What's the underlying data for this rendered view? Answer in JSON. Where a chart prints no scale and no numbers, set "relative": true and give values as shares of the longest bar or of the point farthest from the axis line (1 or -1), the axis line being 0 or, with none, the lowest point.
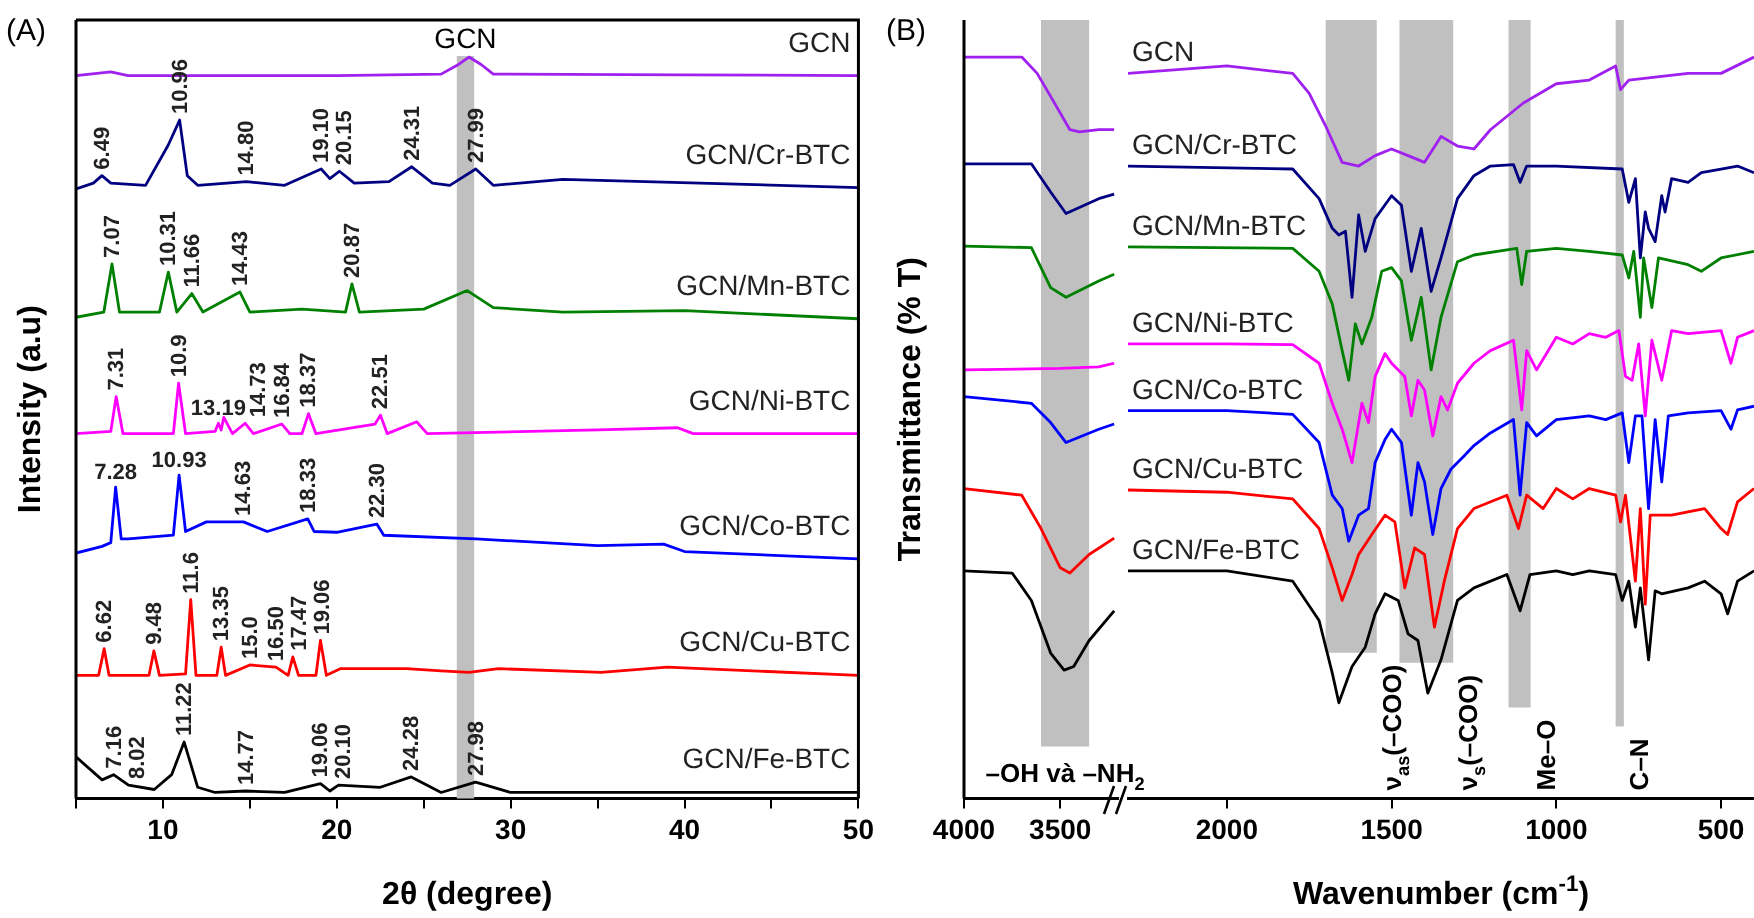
{
  "chart_data": [
    {
      "type": "line",
      "relative": true,
      "title": "(A)",
      "xlabel": "2θ (degree)",
      "ylabel": "Intensity (a.u)",
      "tick_labels": "x",
      "xlim": [
        5,
        50
      ],
      "xticks": [
        {
          "value": 5,
          "label": null
        },
        10,
        {
          "value": 15,
          "label": null
        },
        20,
        {
          "value": 25,
          "label": null
        },
        30,
        {
          "value": 35,
          "label": null
        },
        40,
        {
          "value": 45,
          "label": null
        },
        50
      ],
      "bands": [
        {
          "axis": "x",
          "from": 26.9,
          "to": 27.9,
          "label": "GCN",
          "color": "#c0c0c0"
        }
      ],
      "series": [
        {
          "name": "GCN",
          "color": "#a020f0",
          "x": [
            5,
            7,
            8,
            20,
            26,
            27,
            27.6,
            28.3,
            29,
            40,
            50
          ],
          "values": [
            0.975,
            0.98,
            0.975,
            0.975,
            0.977,
            0.99,
            1.0,
            0.99,
            0.977,
            0.976,
            0.975
          ]
        },
        {
          "name": "GCN/Cr-BTC",
          "color": "#000080",
          "x": [
            5,
            6,
            6.49,
            7,
            9,
            10.3,
            10.96,
            11.4,
            12,
            14.8,
            17,
            19.1,
            19.6,
            20.15,
            21,
            23,
            24.31,
            25.5,
            26.5,
            27.99,
            29,
            33,
            50
          ],
          "values": [
            0.822,
            0.83,
            0.84,
            0.83,
            0.827,
            0.881,
            0.915,
            0.84,
            0.827,
            0.832,
            0.827,
            0.849,
            0.836,
            0.846,
            0.83,
            0.832,
            0.852,
            0.83,
            0.827,
            0.849,
            0.827,
            0.835,
            0.824
          ]
        },
        {
          "name": "GCN/Mn-BTC",
          "color": "#008000",
          "x": [
            5,
            6.6,
            7.07,
            7.5,
            9.8,
            10.31,
            10.8,
            11.66,
            12.3,
            14.43,
            15,
            18,
            20.5,
            20.87,
            21.3,
            25,
            27.5,
            29,
            33,
            40,
            50
          ],
          "values": [
            0.649,
            0.656,
            0.721,
            0.656,
            0.656,
            0.71,
            0.656,
            0.681,
            0.656,
            0.683,
            0.656,
            0.66,
            0.656,
            0.694,
            0.656,
            0.66,
            0.685,
            0.662,
            0.656,
            0.658,
            0.647
          ]
        },
        {
          "name": "GCN/Ni-BTC",
          "color": "#ff00ff",
          "x": [
            5,
            7.0,
            7.31,
            7.7,
            10.6,
            10.9,
            11.3,
            13.0,
            13.19,
            13.35,
            13.5,
            14.0,
            14.73,
            15.2,
            16.84,
            17.3,
            18.0,
            18.37,
            18.8,
            22.2,
            22.51,
            22.9,
            24.6,
            25.2,
            35,
            39.6,
            40.5,
            50
          ],
          "values": [
            0.492,
            0.495,
            0.542,
            0.492,
            0.492,
            0.56,
            0.492,
            0.495,
            0.506,
            0.497,
            0.514,
            0.492,
            0.506,
            0.492,
            0.505,
            0.492,
            0.492,
            0.519,
            0.492,
            0.505,
            0.517,
            0.492,
            0.508,
            0.492,
            0.497,
            0.5,
            0.492,
            0.492
          ]
        },
        {
          "name": "GCN/Co-BTC",
          "color": "#0000ff",
          "x": [
            5,
            6.5,
            7.0,
            7.28,
            7.6,
            8,
            10.6,
            10.93,
            11.3,
            12.5,
            14.63,
            16,
            18.33,
            18.7,
            20,
            22.3,
            22.7,
            28,
            35,
            38.8,
            40,
            50
          ],
          "values": [
            0.331,
            0.34,
            0.345,
            0.42,
            0.35,
            0.35,
            0.355,
            0.436,
            0.36,
            0.373,
            0.373,
            0.36,
            0.377,
            0.36,
            0.359,
            0.37,
            0.355,
            0.35,
            0.341,
            0.343,
            0.333,
            0.323
          ]
        },
        {
          "name": "GCN/Cu-BTC",
          "color": "#ff0000",
          "x": [
            5,
            6.3,
            6.62,
            6.9,
            9.2,
            9.48,
            9.8,
            11.3,
            11.6,
            11.9,
            13.1,
            13.35,
            13.6,
            15.0,
            16.5,
            17.2,
            17.47,
            17.8,
            18.8,
            19.06,
            19.4,
            20.2,
            24,
            26,
            27.6,
            29.3,
            35.2,
            39,
            50
          ],
          "values": [
            0.166,
            0.166,
            0.202,
            0.166,
            0.166,
            0.199,
            0.166,
            0.168,
            0.268,
            0.166,
            0.166,
            0.204,
            0.166,
            0.18,
            0.177,
            0.166,
            0.191,
            0.166,
            0.166,
            0.213,
            0.166,
            0.175,
            0.175,
            0.172,
            0.17,
            0.175,
            0.17,
            0.177,
            0.166
          ]
        },
        {
          "name": "GCN/Fe-BTC",
          "color": "#000000",
          "x": [
            5,
            6.5,
            7.16,
            8.02,
            9.5,
            10.5,
            11.22,
            12,
            13,
            14.77,
            17,
            19.06,
            19.6,
            20.1,
            22.5,
            24.28,
            26,
            27.98,
            30,
            40,
            50
          ],
          "values": [
            0.056,
            0.025,
            0.032,
            0.018,
            0.012,
            0.032,
            0.076,
            0.015,
            0.008,
            0.01,
            0.008,
            0.02,
            0.01,
            0.018,
            0.015,
            0.029,
            0.008,
            0.022,
            0.008,
            0.008,
            0.008
          ]
        }
      ],
      "annotations": [
        {
          "text": "6.49",
          "x": 6.49,
          "y": 0.84
        },
        {
          "text": "10.96",
          "x": 10.96,
          "y": 0.915
        },
        {
          "text": "14.80",
          "x": 14.8,
          "y": 0.832
        },
        {
          "text": "19.10",
          "x": 19.1,
          "y": 0.849
        },
        {
          "text": "20.15",
          "x": 20.15,
          "y": 0.846
        },
        {
          "text": "24.31",
          "x": 24.31,
          "y": 0.852
        },
        {
          "text": "27.99",
          "x": 27.99,
          "y": 0.849
        },
        {
          "text": "7.07",
          "x": 7.07,
          "y": 0.721
        },
        {
          "text": "10.31",
          "x": 10.31,
          "y": 0.71
        },
        {
          "text": "11.66",
          "x": 11.66,
          "y": 0.681
        },
        {
          "text": "14.43",
          "x": 14.43,
          "y": 0.683
        },
        {
          "text": "20.87",
          "x": 20.87,
          "y": 0.694
        },
        {
          "text": "7.31",
          "x": 7.31,
          "y": 0.542
        },
        {
          "text": "10.9",
          "x": 10.9,
          "y": 0.56
        },
        {
          "text": "13.19",
          "x": 13.19,
          "y": 0.506
        },
        {
          "text": "14.73",
          "x": 14.73,
          "y": 0.506
        },
        {
          "text": "16.84",
          "x": 16.84,
          "y": 0.505
        },
        {
          "text": "18.37",
          "x": 18.37,
          "y": 0.519
        },
        {
          "text": "22.51",
          "x": 22.51,
          "y": 0.517
        },
        {
          "text": "7.28",
          "x": 7.28,
          "y": 0.42
        },
        {
          "text": "10.93",
          "x": 10.93,
          "y": 0.436
        },
        {
          "text": "14.63",
          "x": 14.63,
          "y": 0.373
        },
        {
          "text": "18.33",
          "x": 18.33,
          "y": 0.377
        },
        {
          "text": "22.30",
          "x": 22.3,
          "y": 0.37
        },
        {
          "text": "6.62",
          "x": 6.62,
          "y": 0.202
        },
        {
          "text": "9.48",
          "x": 9.48,
          "y": 0.199
        },
        {
          "text": "11.6",
          "x": 11.6,
          "y": 0.268
        },
        {
          "text": "13.35",
          "x": 13.35,
          "y": 0.204
        },
        {
          "text": "15.0",
          "x": 15.0,
          "y": 0.18
        },
        {
          "text": "16.50",
          "x": 16.5,
          "y": 0.177
        },
        {
          "text": "17.47",
          "x": 17.47,
          "y": 0.191
        },
        {
          "text": "19.06",
          "x": 19.06,
          "y": 0.213
        },
        {
          "text": "7.16",
          "x": 7.16,
          "y": 0.032
        },
        {
          "text": "8.02",
          "x": 8.02,
          "y": 0.018
        },
        {
          "text": "11.22",
          "x": 11.22,
          "y": 0.076
        },
        {
          "text": "14.77",
          "x": 14.77,
          "y": 0.01
        },
        {
          "text": "19.06",
          "x": 19.06,
          "y": 0.02
        },
        {
          "text": "20.10",
          "x": 20.1,
          "y": 0.018
        },
        {
          "text": "24.28",
          "x": 24.28,
          "y": 0.029
        },
        {
          "text": "27.98",
          "x": 27.98,
          "y": 0.022
        }
      ]
    },
    {
      "type": "line",
      "relative": true,
      "title": "(B)",
      "ylabel": "Transmittance (% T)",
      "tick_labels": "x",
      "xlim": [
        4000,
        3200
      ],
      "xticks": [
        4000,
        3500
      ],
      "bands": [
        {
          "axis": "x",
          "from": 3600,
          "to": 3350,
          "label": "–OH và –NH$_{2}$",
          "color": "#c0c0c0"
        }
      ],
      "series": [
        {
          "color": "#a020f0",
          "x": [
            4000,
            3700,
            3620,
            3550,
            3450,
            3400,
            3300,
            3220
          ],
          "values": [
            1.0,
            1.0,
            0.978,
            0.947,
            0.902,
            0.899,
            0.902,
            0.902
          ]
        },
        {
          "color": "#000080",
          "x": [
            4000,
            3650,
            3550,
            3470,
            3300,
            3220
          ],
          "values": [
            0.856,
            0.856,
            0.818,
            0.789,
            0.809,
            0.815
          ]
        },
        {
          "color": "#008000",
          "x": [
            4000,
            3650,
            3550,
            3470,
            3300,
            3220
          ],
          "values": [
            0.745,
            0.743,
            0.689,
            0.676,
            0.698,
            0.707
          ]
        },
        {
          "color": "#ff00ff",
          "x": [
            4000,
            3500,
            3300,
            3220
          ],
          "values": [
            0.578,
            0.58,
            0.582,
            0.587
          ]
        },
        {
          "color": "#0000ff",
          "x": [
            4000,
            3650,
            3550,
            3470,
            3300,
            3220
          ],
          "values": [
            0.542,
            0.533,
            0.507,
            0.48,
            0.498,
            0.505
          ]
        },
        {
          "color": "#ff0000",
          "x": [
            4000,
            3700,
            3600,
            3500,
            3450,
            3350,
            3220
          ],
          "values": [
            0.418,
            0.409,
            0.364,
            0.311,
            0.304,
            0.329,
            0.351
          ]
        },
        {
          "color": "#000000",
          "x": [
            4000,
            3750,
            3650,
            3550,
            3480,
            3430,
            3350,
            3220
          ],
          "values": [
            0.307,
            0.304,
            0.267,
            0.196,
            0.173,
            0.178,
            0.213,
            0.253
          ]
        }
      ]
    },
    {
      "type": "line",
      "relative": true,
      "xlabel": "Wavenumber (cm$^{-1}$)",
      "tick_labels": "x",
      "xlim": [
        2300,
        400
      ],
      "xticks": [
        2000,
        1500,
        1000,
        500
      ],
      "bands": [
        {
          "axis": "x",
          "from": 1700,
          "to": 1545,
          "label": "ν$_{as}$(–COO)",
          "color": "#c0c0c0"
        },
        {
          "axis": "x",
          "from": 1476,
          "to": 1313,
          "label": "ν$_{s}$(–COO)",
          "color": "#c0c0c0"
        },
        {
          "axis": "x",
          "from": 1145,
          "to": 1078,
          "label": "Me–O",
          "color": "#c0c0c0"
        },
        {
          "axis": "x",
          "from": 820,
          "to": 795,
          "label": "C–N",
          "color": "#c0c0c0"
        }
      ],
      "series": [
        {
          "name": "GCN",
          "color": "#a020f0",
          "x": [
            2300,
            2000,
            1800,
            1750,
            1700,
            1650,
            1600,
            1550,
            1500,
            1450,
            1400,
            1350,
            1300,
            1250,
            1200,
            1100,
            1000,
            900,
            820,
            805,
            780,
            700,
            600,
            500,
            400
          ],
          "values": [
            0.978,
            0.988,
            0.978,
            0.951,
            0.907,
            0.858,
            0.853,
            0.867,
            0.876,
            0.867,
            0.858,
            0.893,
            0.88,
            0.876,
            0.902,
            0.938,
            0.964,
            0.969,
            0.988,
            0.956,
            0.969,
            0.973,
            0.978,
            0.978,
            1.0
          ]
        },
        {
          "name": "GCN/Cr-BTC",
          "color": "#000080",
          "x": [
            2300,
            1800,
            1720,
            1680,
            1660,
            1640,
            1620,
            1600,
            1580,
            1550,
            1500,
            1470,
            1440,
            1410,
            1380,
            1350,
            1300,
            1250,
            1200,
            1130,
            1110,
            1090,
            1000,
            800,
            780,
            760,
            745,
            730,
            720,
            700,
            680,
            670,
            650,
            600,
            560,
            500,
            450,
            400
          ],
          "values": [
            0.853,
            0.849,
            0.809,
            0.769,
            0.76,
            0.765,
            0.676,
            0.787,
            0.738,
            0.782,
            0.813,
            0.8,
            0.711,
            0.769,
            0.684,
            0.729,
            0.809,
            0.84,
            0.853,
            0.855,
            0.831,
            0.853,
            0.853,
            0.849,
            0.804,
            0.836,
            0.729,
            0.791,
            0.769,
            0.751,
            0.813,
            0.791,
            0.836,
            0.831,
            0.844,
            0.849,
            0.853,
            0.844
          ]
        },
        {
          "name": "GCN/Mn-BTC",
          "color": "#008000",
          "x": [
            2300,
            1800,
            1720,
            1680,
            1650,
            1630,
            1610,
            1590,
            1560,
            1530,
            1500,
            1470,
            1440,
            1410,
            1380,
            1350,
            1300,
            1250,
            1120,
            1105,
            1090,
            1000,
            900,
            800,
            780,
            765,
            745,
            735,
            710,
            690,
            600,
            560,
            500,
            400
          ],
          "values": [
            0.744,
            0.742,
            0.711,
            0.667,
            0.604,
            0.564,
            0.64,
            0.613,
            0.649,
            0.711,
            0.716,
            0.698,
            0.618,
            0.676,
            0.578,
            0.649,
            0.724,
            0.733,
            0.742,
            0.693,
            0.738,
            0.742,
            0.738,
            0.733,
            0.702,
            0.738,
            0.649,
            0.729,
            0.662,
            0.729,
            0.72,
            0.711,
            0.729,
            0.738
          ]
        },
        {
          "name": "GCN/Ni-BTC",
          "color": "#ff00ff",
          "x": [
            2300,
            2000,
            1800,
            1720,
            1680,
            1650,
            1620,
            1590,
            1570,
            1550,
            1520,
            1500,
            1460,
            1440,
            1420,
            1400,
            1375,
            1350,
            1330,
            1300,
            1250,
            1200,
            1130,
            1105,
            1090,
            1060,
            1000,
            950,
            900,
            850,
            810,
            790,
            770,
            750,
            730,
            710,
            680,
            650,
            600,
            500,
            470,
            450,
            400
          ],
          "values": [
            0.613,
            0.613,
            0.612,
            0.587,
            0.533,
            0.498,
            0.453,
            0.533,
            0.507,
            0.569,
            0.6,
            0.587,
            0.569,
            0.516,
            0.564,
            0.551,
            0.489,
            0.542,
            0.524,
            0.56,
            0.587,
            0.604,
            0.618,
            0.524,
            0.604,
            0.578,
            0.622,
            0.613,
            0.627,
            0.622,
            0.631,
            0.569,
            0.564,
            0.613,
            0.516,
            0.618,
            0.564,
            0.631,
            0.627,
            0.631,
            0.587,
            0.622,
            0.631
          ]
        },
        {
          "name": "GCN/Co-BTC",
          "color": "#0000ff",
          "x": [
            2300,
            2000,
            1800,
            1720,
            1680,
            1650,
            1630,
            1600,
            1570,
            1550,
            1520,
            1500,
            1470,
            1440,
            1420,
            1400,
            1375,
            1350,
            1320,
            1280,
            1250,
            1200,
            1130,
            1110,
            1090,
            1060,
            1000,
            900,
            850,
            800,
            780,
            760,
            740,
            720,
            700,
            680,
            660,
            600,
            500,
            470,
            450,
            400
          ],
          "values": [
            0.523,
            0.523,
            0.518,
            0.48,
            0.409,
            0.391,
            0.347,
            0.382,
            0.391,
            0.453,
            0.484,
            0.498,
            0.48,
            0.382,
            0.453,
            0.427,
            0.356,
            0.418,
            0.444,
            0.462,
            0.476,
            0.493,
            0.511,
            0.409,
            0.507,
            0.489,
            0.511,
            0.516,
            0.511,
            0.52,
            0.453,
            0.516,
            0.516,
            0.391,
            0.511,
            0.427,
            0.516,
            0.52,
            0.523,
            0.498,
            0.524,
            0.529
          ]
        },
        {
          "name": "GCN/Cu-BTC",
          "color": "#ff0000",
          "x": [
            2300,
            2000,
            1800,
            1720,
            1680,
            1650,
            1620,
            1600,
            1560,
            1520,
            1490,
            1460,
            1430,
            1400,
            1370,
            1340,
            1300,
            1250,
            1150,
            1115,
            1090,
            1040,
            1000,
            950,
            900,
            820,
            805,
            790,
            760,
            745,
            730,
            715,
            650,
            550,
            500,
            480,
            450,
            400
          ],
          "values": [
            0.416,
            0.413,
            0.404,
            0.364,
            0.311,
            0.267,
            0.302,
            0.329,
            0.356,
            0.382,
            0.373,
            0.284,
            0.338,
            0.329,
            0.231,
            0.293,
            0.364,
            0.391,
            0.409,
            0.364,
            0.409,
            0.391,
            0.418,
            0.404,
            0.418,
            0.409,
            0.373,
            0.409,
            0.293,
            0.391,
            0.262,
            0.382,
            0.382,
            0.391,
            0.364,
            0.356,
            0.4,
            0.418
          ]
        },
        {
          "name": "GCN/Fe-BTC",
          "color": "#000000",
          "x": [
            2300,
            2000,
            1800,
            1720,
            1680,
            1660,
            1620,
            1580,
            1550,
            1520,
            1480,
            1450,
            1420,
            1390,
            1350,
            1300,
            1250,
            1150,
            1110,
            1080,
            1000,
            950,
            900,
            820,
            800,
            780,
            760,
            745,
            720,
            700,
            680,
            600,
            550,
            500,
            480,
            450,
            400
          ],
          "values": [
            0.307,
            0.307,
            0.293,
            0.24,
            0.169,
            0.129,
            0.178,
            0.204,
            0.249,
            0.276,
            0.267,
            0.222,
            0.213,
            0.142,
            0.187,
            0.267,
            0.284,
            0.302,
            0.253,
            0.302,
            0.307,
            0.302,
            0.307,
            0.302,
            0.267,
            0.293,
            0.231,
            0.284,
            0.187,
            0.28,
            0.276,
            0.284,
            0.293,
            0.276,
            0.249,
            0.293,
            0.307
          ]
        }
      ]
    }
  ]
}
